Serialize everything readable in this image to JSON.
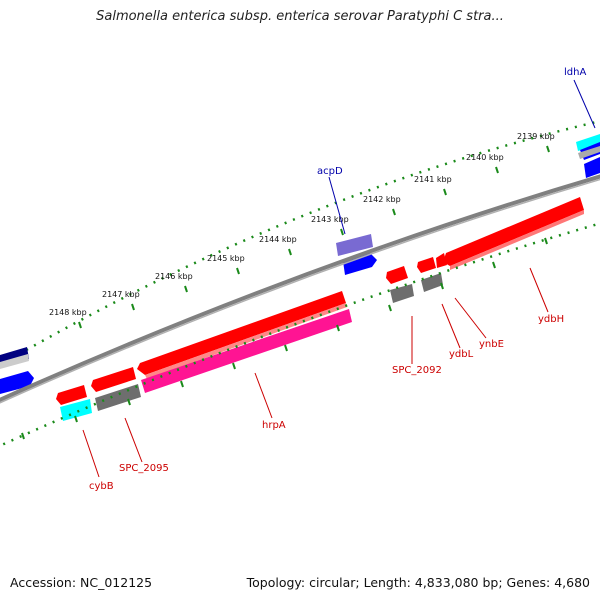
{
  "title": "Salmonella enterica subsp. enterica serovar Paratyphi C stra...",
  "footer": {
    "accession": "Accession: NC_012125",
    "summary": "Topology: circular; Length: 4,833,080 bp; Genes: 4,680"
  },
  "colors": {
    "backbone": "#808080",
    "tick": "#1a8a1a",
    "gene_red": "#ff0000",
    "gene_blue": "#0000ff",
    "gene_darkblue": "#000080",
    "gene_cyan": "#00ffff",
    "gene_gray": "#6e6e6e",
    "gene_pink": "#ff1493",
    "gene_purple": "#6a5acd",
    "label_red": "#cc0000",
    "label_blue": "#0000aa"
  },
  "ticks": [
    "2139 kbp",
    "2140 kbp",
    "2141 kbp",
    "2142 kbp",
    "2143 kbp",
    "2144 kbp",
    "2145 kbp",
    "2146 kbp",
    "2147 kbp",
    "2148 kbp"
  ],
  "gene_labels": [
    {
      "name": "ldhA",
      "color": "blue"
    },
    {
      "name": "acpD",
      "color": "blue"
    },
    {
      "name": "ydbH",
      "color": "red"
    },
    {
      "name": "ynbE",
      "color": "red"
    },
    {
      "name": "ydbL",
      "color": "red"
    },
    {
      "name": "SPC_2092",
      "color": "red"
    },
    {
      "name": "hrpA",
      "color": "red"
    },
    {
      "name": "SPC_2095",
      "color": "red"
    },
    {
      "name": "cybB",
      "color": "red"
    }
  ]
}
